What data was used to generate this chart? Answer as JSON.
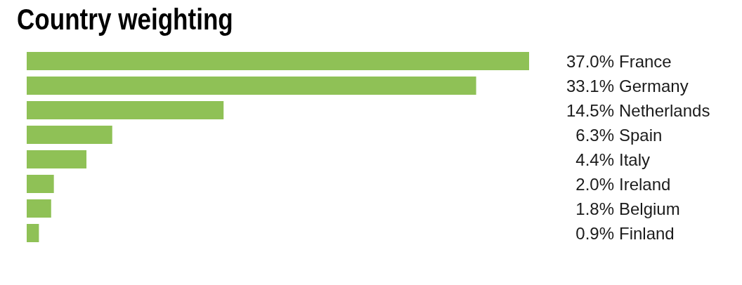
{
  "chart_data": {
    "type": "bar",
    "orientation": "horizontal",
    "title": "Country weighting",
    "categories": [
      "France",
      "Germany",
      "Netherlands",
      "Spain",
      "Italy",
      "Ireland",
      "Belgium",
      "Finland"
    ],
    "values": [
      37.0,
      33.1,
      14.5,
      6.3,
      4.4,
      2.0,
      1.8,
      0.9
    ],
    "value_labels": [
      "37.0%",
      "33.1%",
      "14.5%",
      "6.3%",
      "4.4%",
      "2.0%",
      "1.8%",
      "0.9%"
    ],
    "color": "#8fc156"
  }
}
